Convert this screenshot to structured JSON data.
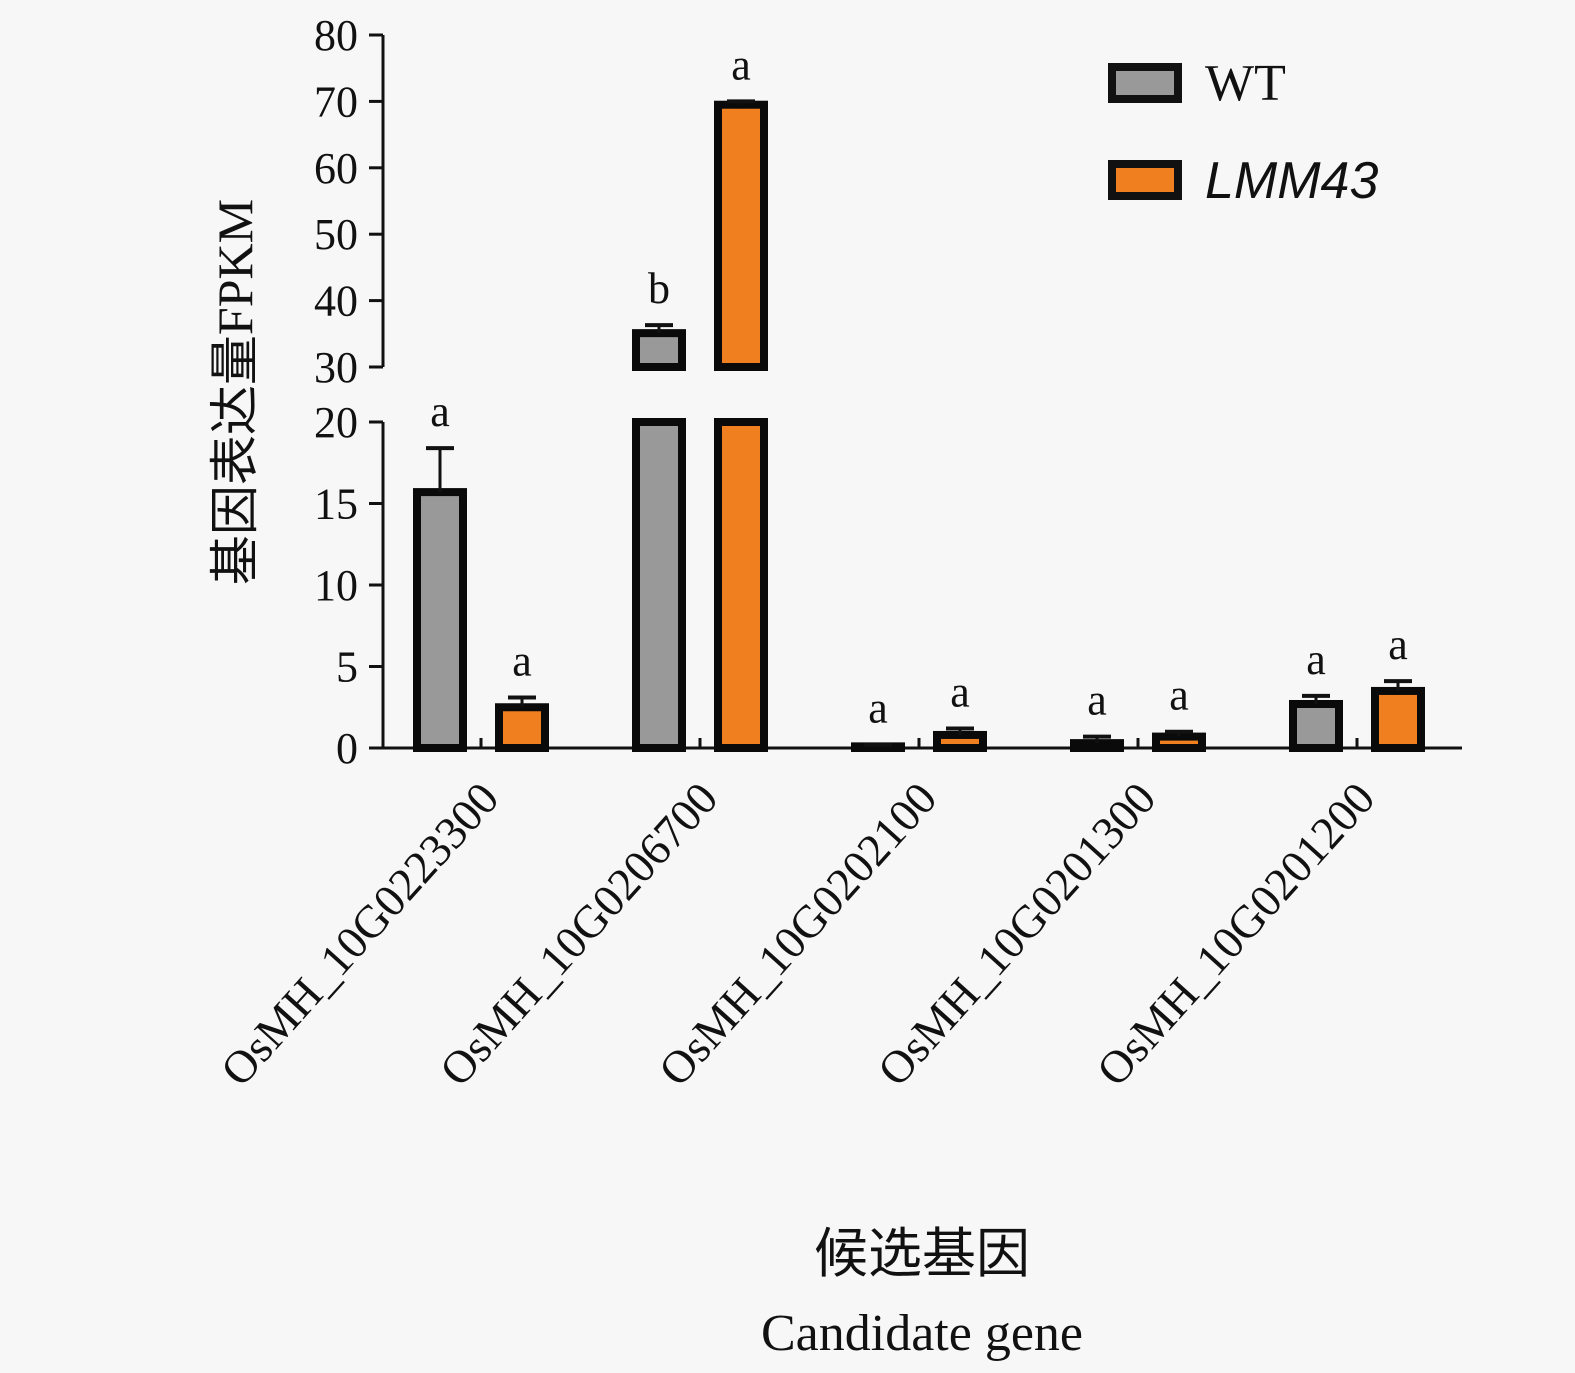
{
  "chart_data": {
    "type": "bar",
    "ylabel": "基因表达量FPKM",
    "xlabel_cn": "候选基因",
    "xlabel_en": "Candidate gene",
    "categories": [
      "OsMH_10G0223300",
      "OsMH_10G0206700",
      "OsMH_10G0202100",
      "OsMH_10G0201300",
      "OsMH_10G0201200"
    ],
    "y_axis": {
      "range": [
        0,
        80
      ],
      "broken_between": [
        20,
        30
      ],
      "ticks_lower": [
        0,
        5,
        10,
        15,
        20
      ],
      "ticks_upper": [
        30,
        40,
        50,
        60,
        70,
        80
      ]
    },
    "legend_position": "top-right",
    "grid": false,
    "series": [
      {
        "name": "WT",
        "color": "#999999",
        "values": [
          15.7,
          35.1,
          0.1,
          0.3,
          2.7
        ],
        "errors": [
          2.7,
          1.2,
          0.1,
          0.4,
          0.5
        ],
        "significance": [
          "a",
          "b",
          "a",
          "a",
          "a"
        ]
      },
      {
        "name": "LMM43",
        "italic": true,
        "color": "#f07f1f",
        "values": [
          2.5,
          69.5,
          0.8,
          0.7,
          3.5
        ],
        "errors": [
          0.6,
          0.5,
          0.4,
          0.3,
          0.6
        ],
        "significance": [
          "a",
          "a",
          "a",
          "a",
          "a"
        ]
      }
    ]
  }
}
